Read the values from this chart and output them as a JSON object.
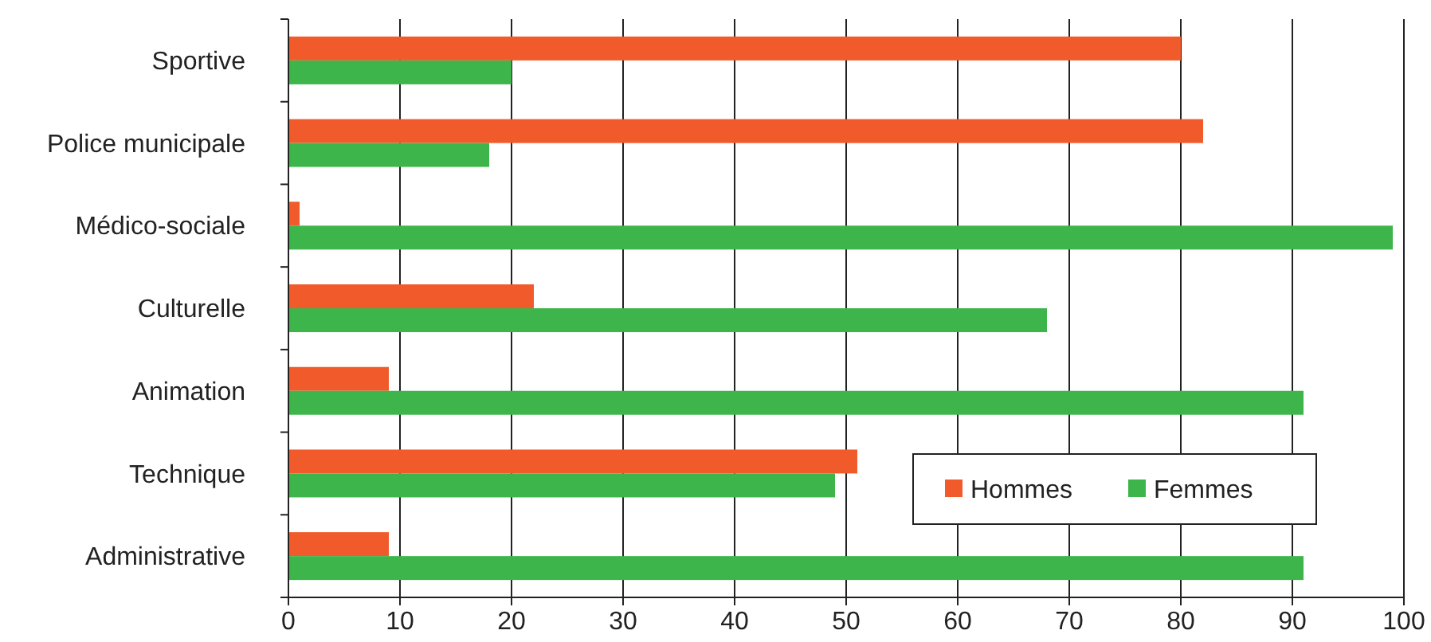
{
  "chart_data": {
    "type": "bar",
    "orientation": "horizontal",
    "categories": [
      "Sportive",
      "Police municipale",
      "Médico-sociale",
      "Culturelle",
      "Animation",
      "Technique",
      "Administrative"
    ],
    "series": [
      {
        "name": "Hommes",
        "color": "#f15a2b",
        "values": [
          80,
          82,
          1,
          22,
          9,
          51,
          9
        ]
      },
      {
        "name": "Femmes",
        "color": "#3db54a",
        "values": [
          20,
          18,
          99,
          68,
          91,
          49,
          91
        ]
      }
    ],
    "xlim": [
      0,
      100
    ],
    "xticks": [
      0,
      10,
      20,
      30,
      40,
      50,
      60,
      70,
      80,
      90,
      100
    ],
    "grid": "x",
    "legend": "bottom right"
  }
}
